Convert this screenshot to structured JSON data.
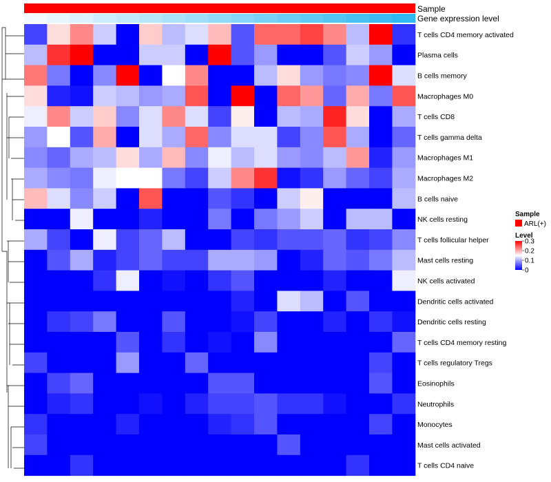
{
  "chart_data": {
    "type": "heatmap",
    "title": "",
    "annotation_tracks": [
      {
        "name": "Sample",
        "color": "#ff0000"
      },
      {
        "name": "Gene expression level",
        "gradient": [
          "#f4fbff",
          "#30b8f2"
        ]
      }
    ],
    "rows": [
      "T cells CD4 memory activated",
      "Plasma cells",
      "B cells memory",
      "Macrophages M0",
      "T cells CD8",
      "T cells gamma delta",
      "Macrophages M1",
      "Macrophages M2",
      "B cells naive",
      "NK cells resting",
      "T cells follicular helper",
      "Mast cells resting",
      "NK cells activated",
      "Dendritic cells activated",
      "Dendritic cells resting",
      "T cells CD4 memory resting",
      "T cells regulatory  Tregs",
      "Eosinophils",
      "Neutrophils",
      "Monocytes",
      "Mast cells activated",
      "T cells CD4 naive"
    ],
    "n_columns": 17,
    "values": [
      [
        0.04,
        0.17,
        0.22,
        0.12,
        0.0,
        0.18,
        0.11,
        0.13,
        0.19,
        0.05,
        0.24,
        0.24,
        0.26,
        0.22,
        0.11,
        0.3,
        0.03
      ],
      [
        0.11,
        0.27,
        0.3,
        0.0,
        0.0,
        0.12,
        0.12,
        0.0,
        0.3,
        0.05,
        0.09,
        0.0,
        0.0,
        0.05,
        0.12,
        0.09,
        0.0
      ],
      [
        0.23,
        0.07,
        0.0,
        0.08,
        0.3,
        0.0,
        0.15,
        0.22,
        0.0,
        0.0,
        0.11,
        0.17,
        0.09,
        0.07,
        0.08,
        0.3,
        0.13
      ],
      [
        0.17,
        0.02,
        0.01,
        0.12,
        0.11,
        0.09,
        0.1,
        0.25,
        0.0,
        0.3,
        0.0,
        0.24,
        0.21,
        0.06,
        0.2,
        0.07,
        0.25
      ],
      [
        0.14,
        0.22,
        0.12,
        0.18,
        0.08,
        0.13,
        0.22,
        0.13,
        0.04,
        0.16,
        0.0,
        0.11,
        0.1,
        0.28,
        0.17,
        0.0,
        0.1
      ],
      [
        0.09,
        0.15,
        0.05,
        0.2,
        0.0,
        0.13,
        0.1,
        0.24,
        0.08,
        0.13,
        0.13,
        0.04,
        0.08,
        0.25,
        0.1,
        0.0,
        0.06
      ],
      [
        0.08,
        0.06,
        0.1,
        0.11,
        0.17,
        0.1,
        0.19,
        0.08,
        0.14,
        0.11,
        0.13,
        0.09,
        0.08,
        0.11,
        0.21,
        0.02,
        0.09
      ],
      [
        0.1,
        0.08,
        0.07,
        0.14,
        0.15,
        0.15,
        0.07,
        0.04,
        0.12,
        0.22,
        0.27,
        0.01,
        0.03,
        0.09,
        0.06,
        0.04,
        0.1
      ],
      [
        0.19,
        0.13,
        0.08,
        0.12,
        0.0,
        0.25,
        0.0,
        0.0,
        0.05,
        0.03,
        0.0,
        0.12,
        0.16,
        0.0,
        0.0,
        0.0,
        0.11
      ],
      [
        0.0,
        0.0,
        0.14,
        0.0,
        0.0,
        0.02,
        0.0,
        0.0,
        0.07,
        0.0,
        0.07,
        0.09,
        0.12,
        0.0,
        0.11,
        0.11,
        0.0
      ],
      [
        0.1,
        0.04,
        0.0,
        0.14,
        0.04,
        0.06,
        0.11,
        0.0,
        0.0,
        0.04,
        0.03,
        0.05,
        0.05,
        0.06,
        0.03,
        0.04,
        0.08
      ],
      [
        0.0,
        0.05,
        0.1,
        0.02,
        0.04,
        0.06,
        0.04,
        0.04,
        0.1,
        0.1,
        0.09,
        0.0,
        0.02,
        0.06,
        0.05,
        0.07,
        0.11
      ],
      [
        0.0,
        0.0,
        0.0,
        0.03,
        0.14,
        0.0,
        0.01,
        0.0,
        0.03,
        0.05,
        0.0,
        0.0,
        0.0,
        0.02,
        0.0,
        0.0,
        0.14
      ],
      [
        0.0,
        0.0,
        0.0,
        0.0,
        0.0,
        0.0,
        0.0,
        0.0,
        0.0,
        0.02,
        0.0,
        0.13,
        0.11,
        0.0,
        0.05,
        0.0,
        0.0
      ],
      [
        0.0,
        0.03,
        0.04,
        0.07,
        0.0,
        0.0,
        0.05,
        0.0,
        0.0,
        0.01,
        0.04,
        0.0,
        0.0,
        0.02,
        0.0,
        0.03,
        0.01
      ],
      [
        0.0,
        0.0,
        0.0,
        0.0,
        0.05,
        0.0,
        0.03,
        0.0,
        0.01,
        0.0,
        0.08,
        0.0,
        0.0,
        0.0,
        0.0,
        0.0,
        0.06
      ],
      [
        0.04,
        0.0,
        0.0,
        0.0,
        0.09,
        0.0,
        0.0,
        0.06,
        0.0,
        0.0,
        0.0,
        0.0,
        0.0,
        0.0,
        0.0,
        0.04,
        0.0
      ],
      [
        0.0,
        0.04,
        0.06,
        0.0,
        0.0,
        0.0,
        0.0,
        0.0,
        0.05,
        0.05,
        0.0,
        0.0,
        0.0,
        0.0,
        0.0,
        0.05,
        0.0
      ],
      [
        0.0,
        0.02,
        0.03,
        0.0,
        0.0,
        0.01,
        0.0,
        0.02,
        0.04,
        0.04,
        0.05,
        0.03,
        0.03,
        0.01,
        0.0,
        0.0,
        0.03
      ],
      [
        0.03,
        0.0,
        0.0,
        0.0,
        0.02,
        0.0,
        0.0,
        0.0,
        0.02,
        0.03,
        0.05,
        0.0,
        0.0,
        0.0,
        0.0,
        0.04,
        0.0
      ],
      [
        0.04,
        0.0,
        0.0,
        0.0,
        0.0,
        0.0,
        0.0,
        0.0,
        0.0,
        0.0,
        0.0,
        0.05,
        0.0,
        0.0,
        0.0,
        0.0,
        0.0
      ],
      [
        0.0,
        0.0,
        0.03,
        0.0,
        0.0,
        0.0,
        0.0,
        0.0,
        0.0,
        0.0,
        0.0,
        0.0,
        0.0,
        0.0,
        0.03,
        0.0,
        0.0
      ]
    ],
    "color_scale": {
      "min": 0,
      "max": 0.3,
      "colors": [
        "#0000ff",
        "#ffffff",
        "#ff0000"
      ]
    },
    "legend": {
      "sample_title": "Sample",
      "sample_entries": [
        {
          "label": "ARL(+)",
          "color": "#ff0000"
        }
      ],
      "level_title": "Level",
      "level_ticks": [
        "0.3",
        "0.2",
        "0.1",
        "0"
      ],
      "level_tick_values": [
        0.3,
        0.2,
        0.1,
        0
      ]
    },
    "dendrogram": "rows"
  }
}
